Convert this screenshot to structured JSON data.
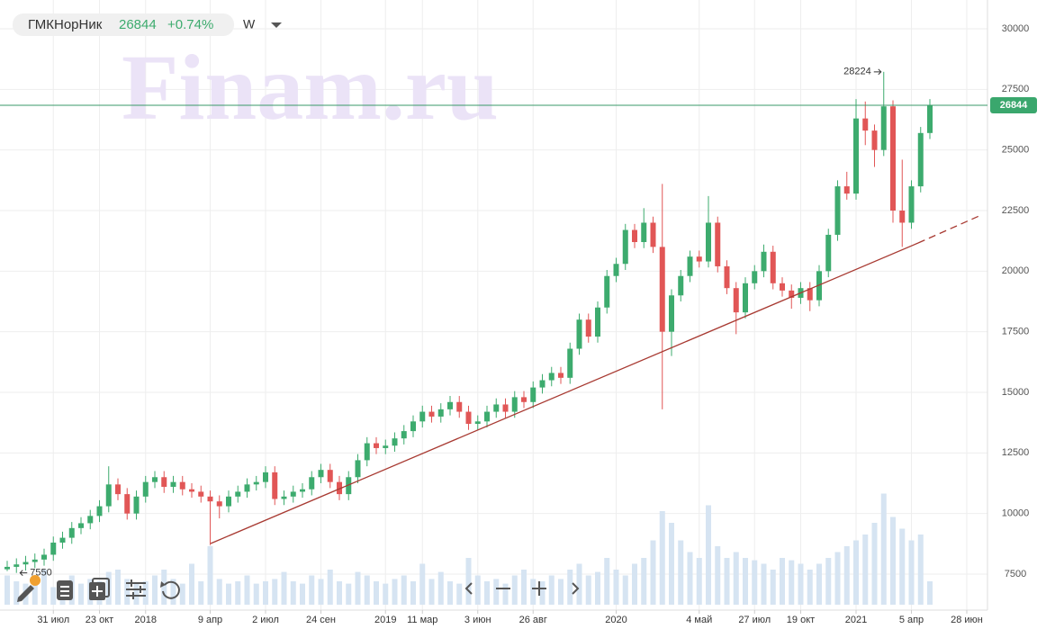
{
  "chart_data": {
    "type": "candlestick",
    "ticker": "ГМКНорНик",
    "change": {
      "value": 0.74,
      "label": "+0.74%"
    },
    "interval": "W",
    "watermark": "Finam.ru",
    "categories": [
      null,
      null,
      null,
      null,
      null,
      "31 июл",
      null,
      null,
      null,
      null,
      "23 окт",
      null,
      null,
      null,
      null,
      "2018",
      null,
      null,
      null,
      null,
      null,
      null,
      "9 апр",
      null,
      null,
      null,
      null,
      null,
      "2 июл",
      null,
      null,
      null,
      null,
      null,
      "24 сен",
      null,
      null,
      null,
      null,
      null,
      null,
      "2019",
      null,
      null,
      null,
      "11 мар",
      null,
      null,
      null,
      null,
      null,
      "3 июн",
      null,
      null,
      null,
      null,
      null,
      "26 авг",
      null,
      null,
      null,
      null,
      null,
      null,
      null,
      null,
      "2020",
      null,
      null,
      null,
      null,
      null,
      null,
      null,
      null,
      "4 май",
      null,
      null,
      null,
      null,
      null,
      "27 июл",
      null,
      null,
      null,
      null,
      "19 окт",
      null,
      null,
      null,
      null,
      null,
      "2021",
      null,
      null,
      null,
      null,
      null,
      "5 апр",
      null,
      null,
      null,
      null,
      null,
      "28 июн"
    ],
    "open": [
      7700,
      7800,
      7900,
      8000,
      8100,
      8300,
      8800,
      9000,
      9400,
      9600,
      9900,
      10300,
      11200,
      10800,
      10000,
      10700,
      11300,
      11500,
      11100,
      11300,
      11000,
      10900,
      10700,
      10500,
      10300,
      10700,
      10900,
      11200,
      11300,
      11700,
      10600,
      10700,
      10900,
      11000,
      11500,
      11800,
      11300,
      10800,
      11500,
      12200,
      12900,
      12700,
      12800,
      13100,
      13400,
      13800,
      14200,
      14000,
      14300,
      14600,
      14200,
      13700,
      13800,
      14200,
      14500,
      14200,
      14800,
      14600,
      15200,
      15500,
      15800,
      15600,
      16800,
      18000,
      17300,
      18500,
      19800,
      20300,
      21700,
      21200,
      22000,
      21000,
      17500,
      19000,
      19800,
      20600,
      20400,
      22000,
      20200,
      19300,
      18300,
      19500,
      20000,
      20800,
      19500,
      19200,
      18900,
      19300,
      18800,
      20000,
      21500,
      23500,
      23200,
      26300,
      25800,
      25000,
      26800,
      22500,
      22000,
      23500,
      25700,
      null,
      null,
      null,
      null
    ],
    "high": [
      8050,
      8150,
      8250,
      8350,
      8550,
      9050,
      9250,
      9650,
      9850,
      10150,
      10550,
      11950,
      11450,
      11050,
      10950,
      11550,
      11750,
      11750,
      11550,
      11550,
      11250,
      11150,
      10950,
      10750,
      10950,
      11150,
      11450,
      11550,
      11950,
      11950,
      10950,
      11150,
      11250,
      11750,
      12050,
      12050,
      11550,
      11750,
      12450,
      13150,
      13150,
      13050,
      13350,
      13650,
      14050,
      14450,
      14450,
      14550,
      14850,
      14850,
      14450,
      14050,
      14450,
      14750,
      14750,
      15050,
      15050,
      15450,
      15750,
      16050,
      16050,
      17050,
      18250,
      18250,
      18750,
      20050,
      20550,
      21950,
      21950,
      22600,
      22250,
      23600,
      19250,
      20050,
      20850,
      20850,
      23100,
      22250,
      20450,
      19550,
      19750,
      20250,
      21100,
      21050,
      19750,
      19450,
      19550,
      19550,
      20250,
      21750,
      23750,
      24100,
      27100,
      27000,
      26050,
      28224,
      27050,
      24600,
      23750,
      25950,
      27100,
      null,
      null,
      null,
      null
    ],
    "low": [
      7627,
      7550,
      7650,
      7750,
      7850,
      8050,
      8550,
      8750,
      9150,
      9350,
      9650,
      10050,
      10550,
      9750,
      9750,
      10450,
      11050,
      10850,
      10850,
      10750,
      10650,
      10450,
      8700,
      9800,
      10050,
      10450,
      10650,
      10950,
      11050,
      10350,
      10350,
      10450,
      10650,
      10750,
      11250,
      11050,
      10550,
      10550,
      11250,
      11950,
      12450,
      12450,
      12550,
      12850,
      13150,
      13550,
      13750,
      13750,
      14050,
      13950,
      13450,
      13450,
      13550,
      13950,
      13950,
      13950,
      14350,
      14350,
      14950,
      15250,
      15350,
      15350,
      16550,
      17050,
      17050,
      18250,
      19550,
      20050,
      20950,
      20950,
      20750,
      14300,
      16500,
      18750,
      19550,
      20150,
      20150,
      19950,
      19050,
      17400,
      18050,
      19250,
      19750,
      19250,
      18950,
      18450,
      18650,
      18350,
      18550,
      19750,
      21250,
      22950,
      22950,
      25200,
      24300,
      24750,
      22000,
      21000,
      21750,
      23250,
      25450,
      null,
      null,
      null,
      null
    ],
    "close": [
      7800,
      7900,
      8000,
      8100,
      8300,
      8800,
      9000,
      9400,
      9600,
      9900,
      10300,
      11200,
      10800,
      10000,
      10700,
      11300,
      11500,
      11100,
      11300,
      11000,
      10900,
      10700,
      10500,
      10300,
      10700,
      10900,
      11200,
      11300,
      11700,
      10600,
      10700,
      10900,
      11000,
      11500,
      11800,
      11300,
      10800,
      11500,
      12200,
      12900,
      12700,
      12800,
      13100,
      13400,
      13800,
      14200,
      14000,
      14300,
      14600,
      14200,
      13700,
      13800,
      14200,
      14500,
      14200,
      14800,
      14600,
      15200,
      15500,
      15800,
      15600,
      16800,
      18000,
      17300,
      18500,
      19800,
      20300,
      21700,
      21200,
      22000,
      21000,
      17500,
      19000,
      19800,
      20600,
      20400,
      22000,
      20200,
      19300,
      18300,
      19500,
      20000,
      20800,
      19500,
      19200,
      18900,
      19300,
      18800,
      20000,
      21500,
      23500,
      23200,
      26300,
      25800,
      25000,
      26800,
      22500,
      22000,
      23500,
      25700,
      26844,
      null,
      null,
      null,
      null
    ],
    "volume": [
      25,
      20,
      18,
      22,
      30,
      15,
      20,
      25,
      18,
      22,
      20,
      28,
      30,
      22,
      18,
      20,
      25,
      30,
      22,
      18,
      35,
      20,
      50,
      22,
      18,
      20,
      25,
      18,
      20,
      22,
      28,
      20,
      18,
      25,
      22,
      30,
      20,
      18,
      28,
      25,
      20,
      18,
      22,
      25,
      20,
      35,
      22,
      28,
      20,
      18,
      40,
      25,
      20,
      22,
      18,
      25,
      30,
      22,
      20,
      25,
      22,
      30,
      35,
      25,
      28,
      40,
      30,
      25,
      35,
      40,
      55,
      80,
      70,
      55,
      45,
      40,
      85,
      50,
      40,
      45,
      40,
      38,
      35,
      30,
      40,
      38,
      35,
      30,
      35,
      40,
      45,
      50,
      55,
      60,
      70,
      95,
      75,
      65,
      55,
      60,
      20,
      null,
      null,
      null,
      null
    ],
    "volume_lim": [
      0,
      100
    ],
    "up_color": "#3dab6e",
    "down_color": "#e15656",
    "volume_color": "#d6e4f2",
    "ylim": [
      6015,
      31188
    ],
    "yticks": [
      7500,
      10000,
      12500,
      15000,
      17500,
      20000,
      22500,
      25000,
      27500,
      30000
    ],
    "grid": true
  }
}
